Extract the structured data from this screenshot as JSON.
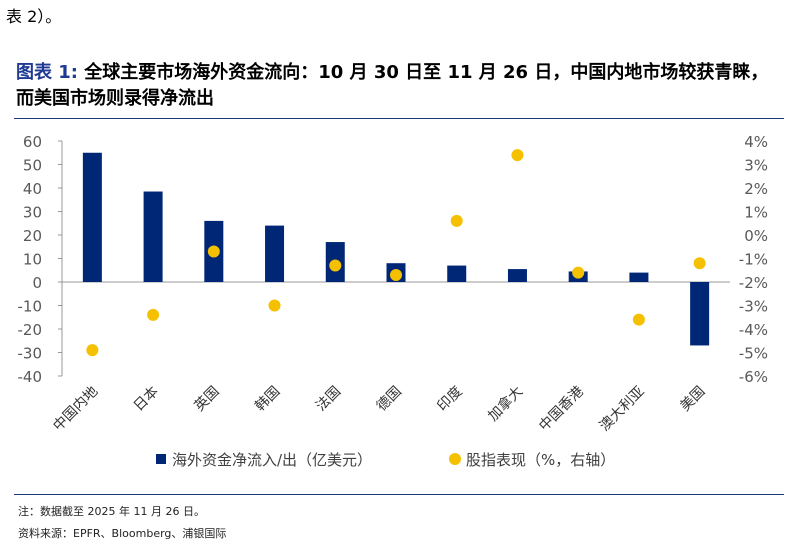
{
  "page": {
    "top_text": "表 2）。",
    "figure_label": "图表 1:",
    "figure_title": "全球主要市场海外资金流向：10 月 30 日至 11 月 26 日，中国内地市场较获青睐，而美国市场则录得净流出",
    "note": "注：数据截至 2025 年 11 月 26 日。",
    "source": "资料来源：EPFR、Bloomberg、浦银国际"
  },
  "colors": {
    "bar": "#002776",
    "dot": "#F5C000",
    "axis": "#999999",
    "title_label": "#1f3a93"
  },
  "chart_data": {
    "type": "bar",
    "categories": [
      "中国内地",
      "日本",
      "英国",
      "韩国",
      "法国",
      "德国",
      "印度",
      "加拿大",
      "中国香港",
      "澳大利亚",
      "美国"
    ],
    "series": [
      {
        "name": "海外资金净流入/出（亿美元）",
        "type": "bar",
        "axis": "left",
        "values": [
          55,
          38.5,
          26,
          24,
          17,
          8,
          7,
          5.5,
          4.5,
          4,
          -27
        ]
      },
      {
        "name": "股指表现（%，右轴）",
        "type": "scatter",
        "axis": "right",
        "values": [
          -4.9,
          -3.4,
          -0.7,
          -3.0,
          -1.3,
          -1.7,
          0.6,
          3.4,
          -1.6,
          -3.6,
          -1.2
        ]
      }
    ],
    "ylim_left": [
      -40,
      60
    ],
    "yticks_left": [
      "60",
      "50",
      "40",
      "30",
      "20",
      "10",
      "0",
      "-10",
      "-20",
      "-30",
      "-40"
    ],
    "ylim_right": [
      -6,
      4
    ],
    "yticks_right": [
      "4%",
      "3%",
      "2%",
      "1%",
      "0%",
      "-1%",
      "-2%",
      "-3%",
      "-4%",
      "-5%",
      "-6%"
    ],
    "legend": {
      "bar_label": "海外资金净流入/出（亿美元）",
      "dot_label": "股指表现（%，右轴）",
      "position": "bottom"
    }
  }
}
